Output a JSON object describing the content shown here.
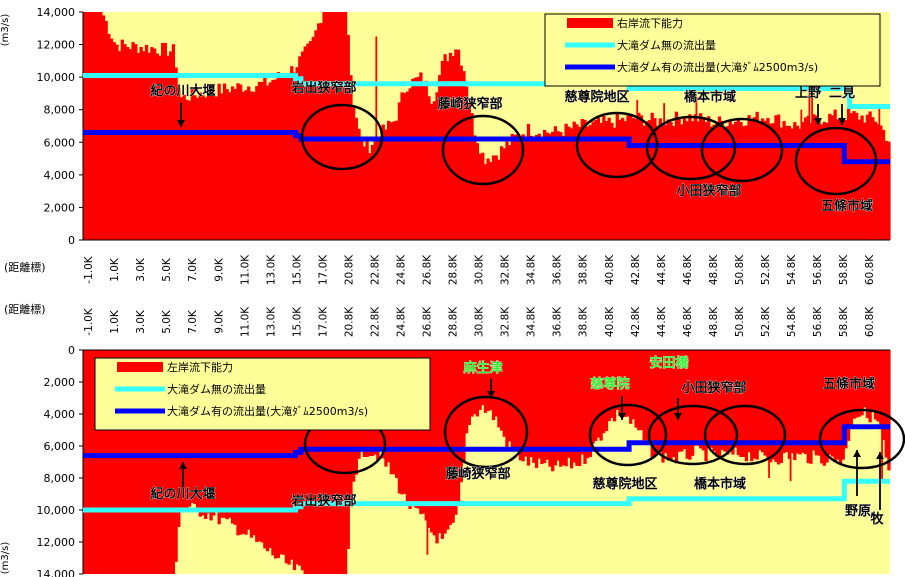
{
  "chart_data": [
    {
      "type": "bar",
      "orientation": "upward",
      "ylabel": "(m3/s)",
      "xlabel": "(距離標)",
      "ylim": [
        0,
        14000
      ],
      "yticks": [
        "0",
        "2,000",
        "4,000",
        "6,000",
        "8,000",
        "10,000",
        "12,000",
        "14,000"
      ],
      "ytick_values": [
        0,
        2000,
        4000,
        6000,
        8000,
        10000,
        12000,
        14000
      ],
      "xticks": [
        "-1.0K",
        "1.0K",
        "3.0K",
        "5.0K",
        "7.0K",
        "9.0K",
        "11.0K",
        "13.0K",
        "15.0K",
        "17.0K",
        "20.8K",
        "22.8K",
        "24.8K",
        "26.8K",
        "28.8K",
        "30.8K",
        "32.8K",
        "34.8K",
        "36.8K",
        "38.8K",
        "40.8K",
        "42.8K",
        "44.8K",
        "46.8K",
        "48.8K",
        "50.8K",
        "52.8K",
        "54.8K",
        "56.8K",
        "58.8K",
        "60.8K"
      ],
      "legend": [
        "右岸流下能力",
        "大滝ダム無の流出量",
        "大滝ダム有の流出量(大滝ﾀﾞﾑ2500m3/s)"
      ],
      "legend_position": "top-right",
      "colors": {
        "capacity": "#ff0000",
        "without_dam": "#33ffff",
        "with_dam": "#0000ff",
        "background": "#ffff99"
      },
      "capacity_profile": [
        {
          "x": 0,
          "y": 14000
        },
        {
          "x": 0.7,
          "y": 14000
        },
        {
          "x": 1.2,
          "y": 12000
        },
        {
          "x": 2.5,
          "y": 11800
        },
        {
          "x": 3.4,
          "y": 11600
        },
        {
          "x": 3.6,
          "y": 8700
        },
        {
          "x": 4.3,
          "y": 9000
        },
        {
          "x": 5.0,
          "y": 9200
        },
        {
          "x": 5.8,
          "y": 9400
        },
        {
          "x": 6.8,
          "y": 9600
        },
        {
          "x": 7.8,
          "y": 10500
        },
        {
          "x": 8.5,
          "y": 12000
        },
        {
          "x": 8.9,
          "y": 14000
        },
        {
          "x": 9.8,
          "y": 14000
        },
        {
          "x": 10.0,
          "y": 9000
        },
        {
          "x": 10.3,
          "y": 6200
        },
        {
          "x": 10.6,
          "y": 5700
        },
        {
          "x": 11.0,
          "y": 6400
        },
        {
          "x": 11.6,
          "y": 7400
        },
        {
          "x": 12.0,
          "y": 9500
        },
        {
          "x": 12.6,
          "y": 10000
        },
        {
          "x": 13.0,
          "y": 8600
        },
        {
          "x": 13.4,
          "y": 11000
        },
        {
          "x": 13.9,
          "y": 12000
        },
        {
          "x": 14.2,
          "y": 10200
        },
        {
          "x": 14.5,
          "y": 7000
        },
        {
          "x": 14.9,
          "y": 5000
        },
        {
          "x": 15.4,
          "y": 5300
        },
        {
          "x": 16.0,
          "y": 6200
        },
        {
          "x": 16.5,
          "y": 6800
        },
        {
          "x": 17.5,
          "y": 6600
        },
        {
          "x": 18.5,
          "y": 7000
        },
        {
          "x": 19.5,
          "y": 7200
        },
        {
          "x": 20.5,
          "y": 7500
        },
        {
          "x": 21.5,
          "y": 7300
        },
        {
          "x": 22.5,
          "y": 7600
        },
        {
          "x": 23.5,
          "y": 7200
        },
        {
          "x": 24.5,
          "y": 7400
        },
        {
          "x": 25.5,
          "y": 7600
        },
        {
          "x": 26.5,
          "y": 7000
        },
        {
          "x": 27.5,
          "y": 7500
        },
        {
          "x": 28.5,
          "y": 7700
        },
        {
          "x": 29.5,
          "y": 7400
        },
        {
          "x": 30.0,
          "y": 6000
        }
      ],
      "capacity_spikes": [
        {
          "x": 10.9,
          "y": 12500
        },
        {
          "x": 20.6,
          "y": 8600
        },
        {
          "x": 21.6,
          "y": 8400
        },
        {
          "x": 22.8,
          "y": 8800
        },
        {
          "x": 26.7,
          "y": 8000
        },
        {
          "x": 27.0,
          "y": 9300
        },
        {
          "x": 27.1,
          "y": 10300
        },
        {
          "x": 29.6,
          "y": 8300
        }
      ],
      "without_dam": [
        {
          "x": 0,
          "y": 10100
        },
        {
          "x": 7.9,
          "y": 10100
        },
        {
          "x": 7.9,
          "y": 9900
        },
        {
          "x": 8.1,
          "y": 9900
        },
        {
          "x": 8.1,
          "y": 9600
        },
        {
          "x": 20.3,
          "y": 9600
        },
        {
          "x": 20.3,
          "y": 9300
        },
        {
          "x": 28.5,
          "y": 9300
        },
        {
          "x": 28.5,
          "y": 8200
        },
        {
          "x": 30.0,
          "y": 8200
        }
      ],
      "with_dam": [
        {
          "x": 0,
          "y": 6600
        },
        {
          "x": 7.9,
          "y": 6600
        },
        {
          "x": 7.9,
          "y": 6400
        },
        {
          "x": 8.1,
          "y": 6400
        },
        {
          "x": 8.1,
          "y": 6200
        },
        {
          "x": 20.3,
          "y": 6200
        },
        {
          "x": 20.3,
          "y": 5800
        },
        {
          "x": 28.3,
          "y": 5800
        },
        {
          "x": 28.3,
          "y": 4800
        },
        {
          "x": 30.0,
          "y": 4800
        }
      ],
      "annotations": [
        "紀の川大堰",
        "岩出狭窄部",
        "藤崎狭窄部",
        "慈尊院地区",
        "橋本市域",
        "上野",
        "二見",
        "小田狭窄部",
        "五條市域"
      ]
    },
    {
      "type": "bar",
      "orientation": "downward",
      "ylabel": "(m3/s)",
      "xlabel": "(距離標)",
      "ylim": [
        0,
        14000
      ],
      "yticks": [
        "0",
        "2,000",
        "4,000",
        "6,000",
        "8,000",
        "10,000",
        "12,000",
        "14,000"
      ],
      "ytick_values": [
        0,
        2000,
        4000,
        6000,
        8000,
        10000,
        12000,
        14000
      ],
      "xticks": [
        "-1.0K",
        "1.0K",
        "3.0K",
        "5.0K",
        "7.0K",
        "9.0K",
        "11.0K",
        "13.0K",
        "15.0K",
        "17.0K",
        "20.8K",
        "22.8K",
        "24.8K",
        "26.8K",
        "28.8K",
        "30.8K",
        "32.8K",
        "34.8K",
        "36.8K",
        "38.8K",
        "40.8K",
        "42.8K",
        "44.8K",
        "46.8K",
        "48.8K",
        "50.8K",
        "52.8K",
        "54.8K",
        "56.8K",
        "58.8K",
        "60.8K"
      ],
      "legend": [
        "左岸流下能力",
        "大滝ダム無の流出量",
        "大滝ダム有の流出量(大滝ﾀﾞﾑ2500m3/s)"
      ],
      "legend_position": "top-left",
      "colors": {
        "capacity": "#ff0000",
        "without_dam": "#33ffff",
        "with_dam": "#0000ff",
        "background": "#ffff99"
      },
      "capacity_profile": [
        {
          "x": 0,
          "y": 14000
        },
        {
          "x": 3.4,
          "y": 14000
        },
        {
          "x": 3.6,
          "y": 9800
        },
        {
          "x": 4.3,
          "y": 10000
        },
        {
          "x": 5.0,
          "y": 10500
        },
        {
          "x": 5.8,
          "y": 11200
        },
        {
          "x": 6.6,
          "y": 12200
        },
        {
          "x": 7.4,
          "y": 13200
        },
        {
          "x": 8.2,
          "y": 14000
        },
        {
          "x": 9.8,
          "y": 14000
        },
        {
          "x": 10.0,
          "y": 8000
        },
        {
          "x": 10.5,
          "y": 6200
        },
        {
          "x": 11.0,
          "y": 6600
        },
        {
          "x": 11.6,
          "y": 8000
        },
        {
          "x": 12.0,
          "y": 9500
        },
        {
          "x": 12.6,
          "y": 10500
        },
        {
          "x": 13.0,
          "y": 11500
        },
        {
          "x": 13.4,
          "y": 12000
        },
        {
          "x": 13.9,
          "y": 10500
        },
        {
          "x": 14.1,
          "y": 8000
        },
        {
          "x": 14.3,
          "y": 4500
        },
        {
          "x": 14.8,
          "y": 3500
        },
        {
          "x": 15.3,
          "y": 4200
        },
        {
          "x": 15.8,
          "y": 6000
        },
        {
          "x": 16.5,
          "y": 7000
        },
        {
          "x": 17.5,
          "y": 7400
        },
        {
          "x": 18.5,
          "y": 7000
        },
        {
          "x": 19.0,
          "y": 6000
        },
        {
          "x": 19.5,
          "y": 4600
        },
        {
          "x": 20.0,
          "y": 3800
        },
        {
          "x": 20.6,
          "y": 5000
        },
        {
          "x": 21.2,
          "y": 6500
        },
        {
          "x": 22.0,
          "y": 6800
        },
        {
          "x": 22.8,
          "y": 6400
        },
        {
          "x": 23.6,
          "y": 6600
        },
        {
          "x": 24.5,
          "y": 6500
        },
        {
          "x": 25.5,
          "y": 6800
        },
        {
          "x": 26.5,
          "y": 6600
        },
        {
          "x": 27.5,
          "y": 6800
        },
        {
          "x": 28.3,
          "y": 6800
        },
        {
          "x": 28.6,
          "y": 4000
        },
        {
          "x": 29.2,
          "y": 4000
        },
        {
          "x": 29.6,
          "y": 4600
        },
        {
          "x": 30.0,
          "y": 8200
        }
      ],
      "capacity_spikes": [
        {
          "x": 12.8,
          "y": 12800
        },
        {
          "x": 15.1,
          "y": 3000
        },
        {
          "x": 19.8,
          "y": 3600
        },
        {
          "x": 20.6,
          "y": 3600
        },
        {
          "x": 25.5,
          "y": 8000
        },
        {
          "x": 26.3,
          "y": 8200
        },
        {
          "x": 29.7,
          "y": 8200
        }
      ],
      "without_dam": [
        {
          "x": 0,
          "y": 10000
        },
        {
          "x": 7.9,
          "y": 10000
        },
        {
          "x": 7.9,
          "y": 9800
        },
        {
          "x": 8.1,
          "y": 9800
        },
        {
          "x": 8.1,
          "y": 9600
        },
        {
          "x": 20.3,
          "y": 9600
        },
        {
          "x": 20.3,
          "y": 9300
        },
        {
          "x": 28.3,
          "y": 9300
        },
        {
          "x": 28.3,
          "y": 8200
        },
        {
          "x": 30.0,
          "y": 8200
        }
      ],
      "with_dam": [
        {
          "x": 0,
          "y": 6600
        },
        {
          "x": 7.9,
          "y": 6600
        },
        {
          "x": 7.9,
          "y": 6400
        },
        {
          "x": 8.1,
          "y": 6400
        },
        {
          "x": 8.1,
          "y": 6200
        },
        {
          "x": 20.3,
          "y": 6200
        },
        {
          "x": 20.3,
          "y": 5800
        },
        {
          "x": 28.3,
          "y": 5800
        },
        {
          "x": 28.3,
          "y": 4800
        },
        {
          "x": 30.0,
          "y": 4800
        }
      ],
      "annotations": [
        "麻生津",
        "安田橋",
        "慈尊院",
        "小田狭窄部",
        "五條市域",
        "藤崎狭窄部",
        "慈尊院地区",
        "橋本市域",
        "紀の川大堰",
        "岩出狭窄部",
        "野原",
        "牧"
      ]
    }
  ]
}
